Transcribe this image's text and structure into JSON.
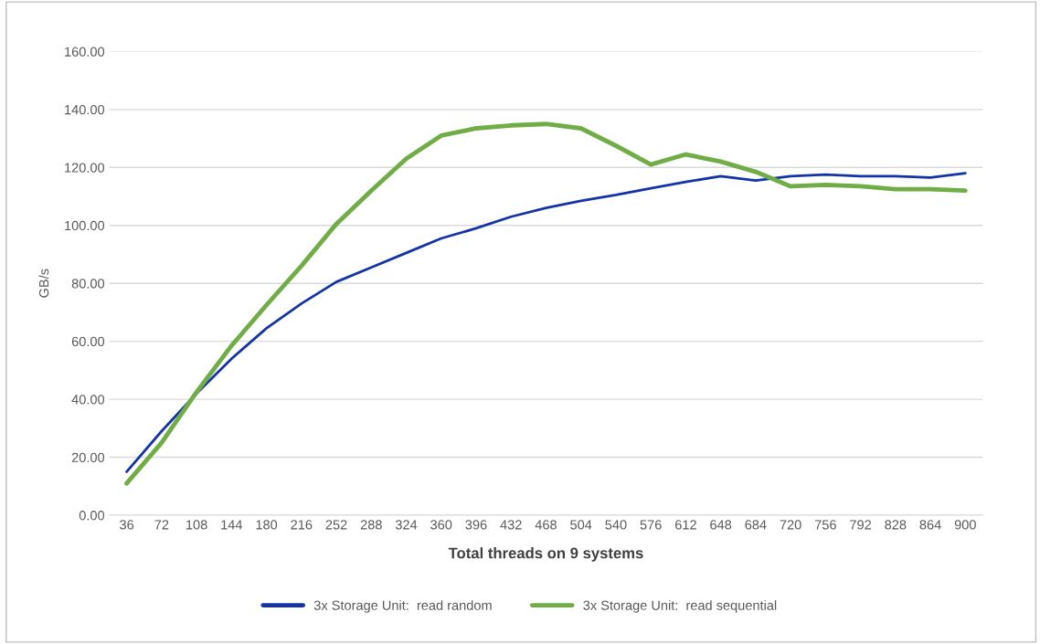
{
  "chart_data": {
    "type": "line",
    "xlabel": "Total threads on 9 systems",
    "ylabel": "GB/s",
    "categories": [
      "36",
      "72",
      "108",
      "144",
      "180",
      "216",
      "252",
      "288",
      "324",
      "360",
      "396",
      "432",
      "468",
      "504",
      "540",
      "576",
      "612",
      "648",
      "684",
      "720",
      "756",
      "792",
      "828",
      "864",
      "900"
    ],
    "series": [
      {
        "name": "3x Storage Unit:  read random",
        "color": "#1533a8",
        "values": [
          15,
          29,
          42,
          54,
          64.5,
          73,
          80.5,
          85.5,
          90.5,
          95.5,
          99,
          103,
          106,
          108.5,
          110.5,
          112.8,
          115,
          117,
          115.5,
          117,
          117.5,
          117,
          117,
          116.5,
          118
        ]
      },
      {
        "name": "3x Storage Unit:  read sequential",
        "color": "#70ad47",
        "values": [
          11,
          25,
          42.5,
          58.5,
          72.5,
          86,
          100.5,
          112,
          123,
          131,
          133.5,
          134.5,
          135,
          133.5,
          127.5,
          121,
          124.5,
          122,
          118.5,
          113.5,
          114,
          113.5,
          112.5,
          112.5,
          112
        ]
      }
    ],
    "ylim": [
      0,
      160
    ],
    "yticks": [
      {
        "value": 0,
        "label": "0.00"
      },
      {
        "value": 20,
        "label": "20.00"
      },
      {
        "value": 40,
        "label": "40.00"
      },
      {
        "value": 60,
        "label": "60.00"
      },
      {
        "value": 80,
        "label": "80.00"
      },
      {
        "value": 100,
        "label": "100.00"
      },
      {
        "value": 120,
        "label": "120.00"
      },
      {
        "value": 140,
        "label": "140.00"
      },
      {
        "value": 160,
        "label": "160.00"
      }
    ],
    "grid": "y",
    "legend": "bottom",
    "marker": "none",
    "line_style": "solid"
  }
}
